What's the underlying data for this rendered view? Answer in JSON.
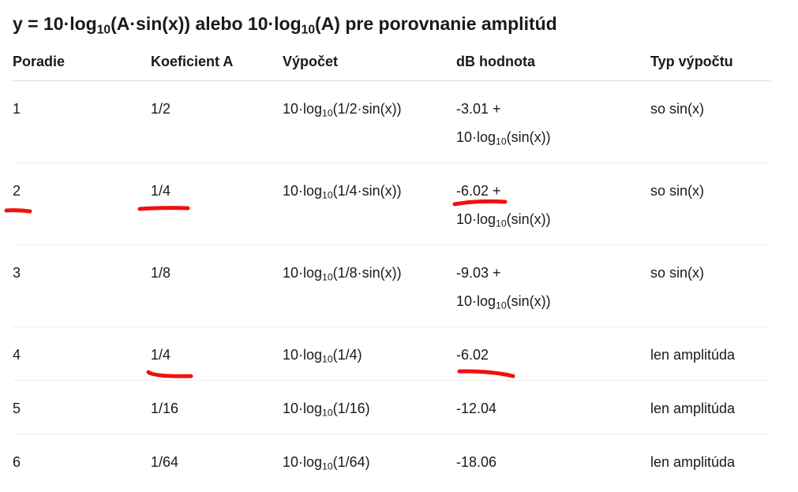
{
  "title": [
    "y = 10·log",
    "10",
    "(A·sin(x)) alebo 10·log",
    "10",
    "(A) pre porovnanie amplitúd"
  ],
  "table": {
    "headers": [
      "Poradie",
      "Koeficient A",
      "Výpočet",
      "dB hodnota",
      "Typ výpočtu"
    ],
    "rows": [
      [
        "1",
        "1/2",
        [
          "10·log",
          "10",
          "(1/2·sin(x))"
        ],
        [
          "-3.01 + 10·log",
          "10",
          "(sin(x))"
        ],
        "so sin(x)"
      ],
      [
        "2",
        "1/4",
        [
          "10·log",
          "10",
          "(1/4·sin(x))"
        ],
        [
          "-6.02 + 10·log",
          "10",
          "(sin(x))"
        ],
        "so sin(x)"
      ],
      [
        "3",
        "1/8",
        [
          "10·log",
          "10",
          "(1/8·sin(x))"
        ],
        [
          "-9.03 + 10·log",
          "10",
          "(sin(x))"
        ],
        "so sin(x)"
      ],
      [
        "4",
        "1/4",
        [
          "10·log",
          "10",
          "(1/4)"
        ],
        "-6.02",
        "len amplitúda"
      ],
      [
        "5",
        "1/16",
        [
          "10·log",
          "10",
          "(1/16)"
        ],
        "-12.04",
        "len amplitúda"
      ],
      [
        "6",
        "1/64",
        [
          "10·log",
          "10",
          "(1/64)"
        ],
        "-18.06",
        "len amplitúda"
      ]
    ]
  }
}
